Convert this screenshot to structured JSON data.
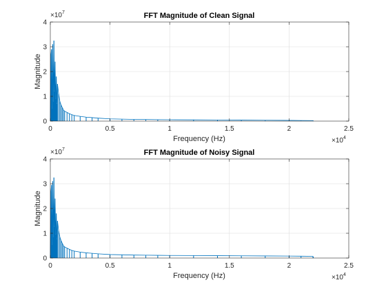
{
  "colors": {
    "series": "#0072BD",
    "grid": "#dcdcdc",
    "axis": "#262626"
  },
  "chart_data": [
    {
      "type": "line",
      "title": "FFT Magnitude of Clean Signal",
      "xlabel": "Frequency (Hz)",
      "ylabel": "Magnitude",
      "xlim": [
        0,
        25000
      ],
      "ylim": [
        0,
        40000000
      ],
      "x_ticks": [
        0,
        5000,
        10000,
        15000,
        20000,
        25000
      ],
      "x_tick_labels": [
        "0",
        "0.5",
        "1",
        "1.5",
        "2",
        "2.5"
      ],
      "y_ticks": [
        0,
        10000000,
        20000000,
        30000000,
        40000000
      ],
      "y_tick_labels": [
        "0",
        "1",
        "2",
        "3",
        "4"
      ],
      "x_multiplier": {
        "base": "×10",
        "exp": "4"
      },
      "y_multiplier": {
        "base": "×10",
        "exp": "7"
      },
      "grid": true,
      "series": [
        {
          "x": [
            0,
            50,
            100,
            150,
            200,
            250,
            300,
            350,
            400,
            450,
            500,
            550,
            600,
            700,
            800,
            900,
            1000,
            1100,
            1200,
            1400,
            1600,
            1800,
            2000,
            2500,
            3000,
            3500,
            4000,
            5000,
            6000,
            7000,
            8000,
            9000,
            10000,
            12000,
            14000,
            16000,
            18000,
            20000,
            21000,
            22000,
            22050
          ],
          "y": [
            1000000,
            27000000,
            29000000,
            5000000,
            31000000,
            8000000,
            32500000,
            12000000,
            24000000,
            9000000,
            18000000,
            7000000,
            15000000,
            11000000,
            8000000,
            6500000,
            5500000,
            4500000,
            4000000,
            3500000,
            3000000,
            2600000,
            2300000,
            1900000,
            1600000,
            1400000,
            1200000,
            900000,
            800000,
            700000,
            650000,
            600000,
            550000,
            500000,
            450000,
            400000,
            350000,
            300000,
            250000,
            200000,
            0
          ]
        }
      ]
    },
    {
      "type": "line",
      "title": "FFT Magnitude of Noisy Signal",
      "xlabel": "Frequency (Hz)",
      "ylabel": "Magnitude",
      "xlim": [
        0,
        25000
      ],
      "ylim": [
        0,
        40000000
      ],
      "x_ticks": [
        0,
        5000,
        10000,
        15000,
        20000,
        25000
      ],
      "x_tick_labels": [
        "0",
        "0.5",
        "1",
        "1.5",
        "2",
        "2.5"
      ],
      "y_ticks": [
        0,
        10000000,
        20000000,
        30000000,
        40000000
      ],
      "y_tick_labels": [
        "0",
        "1",
        "2",
        "3",
        "4"
      ],
      "x_multiplier": {
        "base": "×10",
        "exp": "4"
      },
      "y_multiplier": {
        "base": "×10",
        "exp": "7"
      },
      "grid": true,
      "series": [
        {
          "x": [
            0,
            50,
            100,
            150,
            200,
            250,
            300,
            350,
            400,
            450,
            500,
            550,
            600,
            700,
            800,
            900,
            1000,
            1100,
            1200,
            1400,
            1600,
            1800,
            2000,
            2500,
            3000,
            3500,
            4000,
            5000,
            6000,
            7000,
            8000,
            9000,
            10000,
            12000,
            14000,
            16000,
            18000,
            20000,
            21000,
            22000,
            22050
          ],
          "y": [
            1200000,
            27000000,
            29500000,
            5500000,
            31000000,
            8500000,
            32500000,
            12500000,
            24000000,
            9500000,
            18000000,
            7500000,
            15000000,
            11000000,
            8500000,
            7000000,
            6000000,
            5000000,
            4500000,
            4000000,
            3500000,
            3100000,
            2800000,
            2400000,
            2100000,
            1900000,
            1700000,
            1400000,
            1300000,
            1200000,
            1150000,
            1100000,
            1050000,
            1000000,
            950000,
            900000,
            850000,
            800000,
            750000,
            700000,
            0
          ]
        }
      ]
    }
  ]
}
